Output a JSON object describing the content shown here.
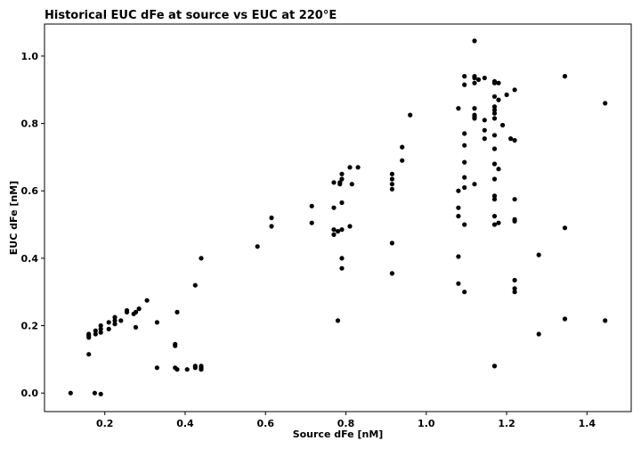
{
  "chart_data": {
    "type": "scatter",
    "title": "Historical EUC dFe at source vs EUC at 220°E",
    "xlabel": "Source dFe [nM]",
    "ylabel": "EUC dFe [nM]",
    "xlim": [
      0.05,
      1.51
    ],
    "ylim": [
      -0.055,
      1.095
    ],
    "xticks": [
      0.2,
      0.4,
      0.6,
      0.8,
      1.0,
      1.2,
      1.4
    ],
    "yticks": [
      0.0,
      0.2,
      0.4,
      0.6,
      0.8,
      1.0
    ],
    "xtick_labels": [
      "0.2",
      "0.4",
      "0.6",
      "0.8",
      "1.0",
      "1.2",
      "1.4"
    ],
    "ytick_labels": [
      "0.0",
      "0.2",
      "0.4",
      "0.6",
      "0.8",
      "1.0"
    ],
    "grid": false,
    "marker_color": "#000000",
    "points": [
      [
        0.115,
        0.0
      ],
      [
        0.16,
        0.115
      ],
      [
        0.16,
        0.165
      ],
      [
        0.16,
        0.17
      ],
      [
        0.16,
        0.175
      ],
      [
        0.175,
        0.0
      ],
      [
        0.177,
        0.175
      ],
      [
        0.177,
        0.185
      ],
      [
        0.19,
        -0.003
      ],
      [
        0.19,
        0.18
      ],
      [
        0.19,
        0.19
      ],
      [
        0.19,
        0.2
      ],
      [
        0.21,
        0.19
      ],
      [
        0.21,
        0.21
      ],
      [
        0.225,
        0.205
      ],
      [
        0.225,
        0.215
      ],
      [
        0.225,
        0.225
      ],
      [
        0.24,
        0.215
      ],
      [
        0.255,
        0.24
      ],
      [
        0.255,
        0.245
      ],
      [
        0.272,
        0.235
      ],
      [
        0.277,
        0.195
      ],
      [
        0.277,
        0.24
      ],
      [
        0.285,
        0.25
      ],
      [
        0.305,
        0.275
      ],
      [
        0.33,
        0.075
      ],
      [
        0.33,
        0.21
      ],
      [
        0.375,
        0.075
      ],
      [
        0.375,
        0.14
      ],
      [
        0.375,
        0.145
      ],
      [
        0.38,
        0.24
      ],
      [
        0.38,
        0.07
      ],
      [
        0.405,
        0.07
      ],
      [
        0.425,
        0.075
      ],
      [
        0.425,
        0.08
      ],
      [
        0.425,
        0.32
      ],
      [
        0.44,
        0.07
      ],
      [
        0.44,
        0.075
      ],
      [
        0.44,
        0.08
      ],
      [
        0.44,
        0.4
      ],
      [
        0.58,
        0.435
      ],
      [
        0.615,
        0.495
      ],
      [
        0.615,
        0.52
      ],
      [
        0.715,
        0.505
      ],
      [
        0.715,
        0.555
      ],
      [
        0.77,
        0.47
      ],
      [
        0.77,
        0.485
      ],
      [
        0.77,
        0.55
      ],
      [
        0.77,
        0.625
      ],
      [
        0.78,
        0.215
      ],
      [
        0.78,
        0.48
      ],
      [
        0.785,
        0.62
      ],
      [
        0.785,
        0.625
      ],
      [
        0.79,
        0.37
      ],
      [
        0.79,
        0.4
      ],
      [
        0.79,
        0.485
      ],
      [
        0.79,
        0.565
      ],
      [
        0.79,
        0.635
      ],
      [
        0.79,
        0.65
      ],
      [
        0.81,
        0.495
      ],
      [
        0.81,
        0.67
      ],
      [
        0.815,
        0.62
      ],
      [
        0.83,
        0.67
      ],
      [
        0.915,
        0.355
      ],
      [
        0.915,
        0.445
      ],
      [
        0.915,
        0.605
      ],
      [
        0.915,
        0.62
      ],
      [
        0.915,
        0.635
      ],
      [
        0.915,
        0.65
      ],
      [
        0.94,
        0.69
      ],
      [
        0.94,
        0.73
      ],
      [
        0.96,
        0.825
      ],
      [
        1.08,
        0.325
      ],
      [
        1.08,
        0.405
      ],
      [
        1.08,
        0.525
      ],
      [
        1.08,
        0.55
      ],
      [
        1.08,
        0.6
      ],
      [
        1.08,
        0.845
      ],
      [
        1.095,
        0.3
      ],
      [
        1.095,
        0.5
      ],
      [
        1.095,
        0.61
      ],
      [
        1.095,
        0.64
      ],
      [
        1.095,
        0.685
      ],
      [
        1.095,
        0.735
      ],
      [
        1.095,
        0.77
      ],
      [
        1.095,
        0.915
      ],
      [
        1.095,
        0.94
      ],
      [
        1.12,
        0.62
      ],
      [
        1.12,
        0.815
      ],
      [
        1.12,
        0.82
      ],
      [
        1.12,
        0.825
      ],
      [
        1.12,
        0.845
      ],
      [
        1.12,
        0.92
      ],
      [
        1.12,
        0.935
      ],
      [
        1.12,
        0.94
      ],
      [
        1.12,
        1.045
      ],
      [
        1.13,
        0.93
      ],
      [
        1.145,
        0.755
      ],
      [
        1.145,
        0.78
      ],
      [
        1.145,
        0.81
      ],
      [
        1.145,
        0.935
      ],
      [
        1.17,
        0.08
      ],
      [
        1.17,
        0.5
      ],
      [
        1.17,
        0.525
      ],
      [
        1.17,
        0.575
      ],
      [
        1.17,
        0.585
      ],
      [
        1.17,
        0.635
      ],
      [
        1.17,
        0.68
      ],
      [
        1.17,
        0.725
      ],
      [
        1.17,
        0.765
      ],
      [
        1.17,
        0.815
      ],
      [
        1.17,
        0.83
      ],
      [
        1.17,
        0.84
      ],
      [
        1.17,
        0.85
      ],
      [
        1.17,
        0.88
      ],
      [
        1.17,
        0.92
      ],
      [
        1.17,
        0.925
      ],
      [
        1.18,
        0.505
      ],
      [
        1.18,
        0.665
      ],
      [
        1.18,
        0.87
      ],
      [
        1.18,
        0.92
      ],
      [
        1.19,
        0.795
      ],
      [
        1.2,
        0.885
      ],
      [
        1.21,
        0.755
      ],
      [
        1.22,
        0.75
      ],
      [
        1.22,
        0.9
      ],
      [
        1.22,
        0.3
      ],
      [
        1.22,
        0.31
      ],
      [
        1.22,
        0.335
      ],
      [
        1.22,
        0.51
      ],
      [
        1.22,
        0.515
      ],
      [
        1.22,
        0.575
      ],
      [
        1.28,
        0.175
      ],
      [
        1.28,
        0.41
      ],
      [
        1.345,
        0.22
      ],
      [
        1.345,
        0.49
      ],
      [
        1.345,
        0.94
      ],
      [
        1.445,
        0.215
      ],
      [
        1.445,
        0.86
      ]
    ]
  }
}
